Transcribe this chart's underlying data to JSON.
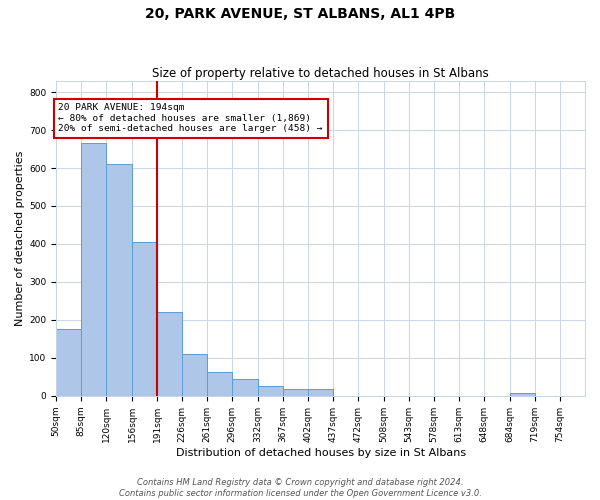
{
  "title": "20, PARK AVENUE, ST ALBANS, AL1 4PB",
  "subtitle": "Size of property relative to detached houses in St Albans",
  "bar_values": [
    175,
    665,
    610,
    405,
    220,
    110,
    62,
    45,
    25,
    18,
    18,
    0,
    0,
    0,
    0,
    0,
    0,
    0,
    8,
    0
  ],
  "bin_labels": [
    "50sqm",
    "85sqm",
    "120sqm",
    "156sqm",
    "191sqm",
    "226sqm",
    "261sqm",
    "296sqm",
    "332sqm",
    "367sqm",
    "402sqm",
    "437sqm",
    "472sqm",
    "508sqm",
    "543sqm",
    "578sqm",
    "613sqm",
    "648sqm",
    "684sqm",
    "719sqm",
    "754sqm"
  ],
  "bin_edges": [
    50,
    85,
    120,
    156,
    191,
    226,
    261,
    296,
    332,
    367,
    402,
    437,
    472,
    508,
    543,
    578,
    613,
    648,
    684,
    719,
    754
  ],
  "bar_color": "#aec6e8",
  "bar_edge_color": "#5b9bd5",
  "property_line_x": 191,
  "property_line_color": "#cc0000",
  "annotation_text": "20 PARK AVENUE: 194sqm\n← 80% of detached houses are smaller (1,869)\n20% of semi-detached houses are larger (458) →",
  "annotation_box_color": "#ffffff",
  "annotation_box_edge_color": "#cc0000",
  "xlabel": "Distribution of detached houses by size in St Albans",
  "ylabel": "Number of detached properties",
  "ylim": [
    0,
    830
  ],
  "yticks": [
    0,
    100,
    200,
    300,
    400,
    500,
    600,
    700,
    800
  ],
  "footer_line1": "Contains HM Land Registry data © Crown copyright and database right 2024.",
  "footer_line2": "Contains public sector information licensed under the Open Government Licence v3.0.",
  "bg_color": "#ffffff",
  "grid_color": "#c8d4e8",
  "title_fontsize": 10,
  "subtitle_fontsize": 8.5,
  "axis_label_fontsize": 8,
  "tick_fontsize": 6.5,
  "footer_fontsize": 6
}
